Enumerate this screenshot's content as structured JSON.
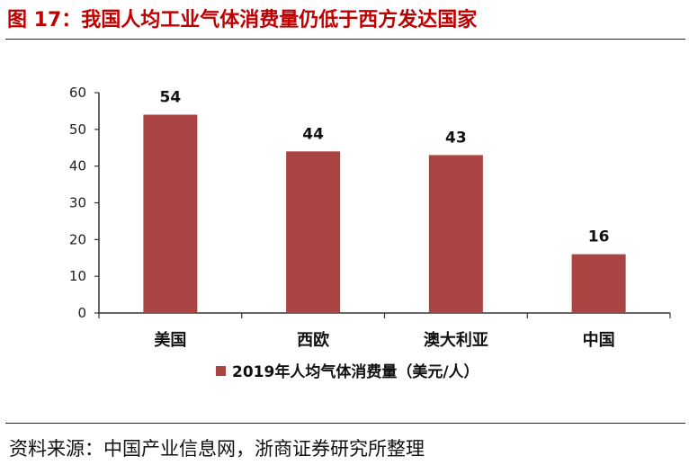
{
  "figure": {
    "title": "图 17：我国人均工业气体消费量仍低于西方发达国家",
    "source": "资料来源：中国产业信息网，浙商证券研究所整理"
  },
  "chart_data": {
    "type": "bar",
    "categories": [
      "美国",
      "西欧",
      "澳大利亚",
      "中国"
    ],
    "series": [
      {
        "name": "2019年人均气体消费量（美元/人）",
        "values": [
          54,
          44,
          43,
          16
        ],
        "color": "#a94442"
      }
    ],
    "ylim": [
      0,
      60
    ],
    "yticks": [
      0,
      10,
      20,
      30,
      40,
      50,
      60
    ],
    "xlabel": "",
    "ylabel": "",
    "grid": false,
    "legend_position": "bottom-center",
    "data_labels": [
      "54",
      "44",
      "43",
      "16"
    ]
  }
}
